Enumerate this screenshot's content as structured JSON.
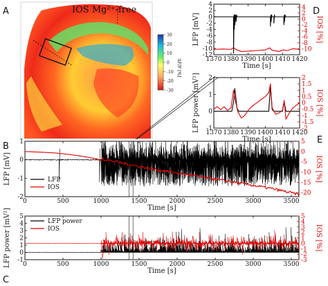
{
  "panel_letters": {
    "a": "A",
    "b": "B",
    "c": "C",
    "d": "D",
    "e": "E"
  },
  "image_panel": {
    "title": "IOS Mg²⁺-free",
    "colorbar": {
      "label": "ΔF/F [%]",
      "ticks": [
        "30",
        "20",
        "10",
        "0",
        "-10",
        "-20",
        "-30"
      ],
      "range": [
        -30,
        30
      ],
      "colormap": [
        "#d7191c",
        "#fdae61",
        "#ffff66",
        "#66ee66",
        "#22bbdd",
        "#2233aa"
      ]
    }
  },
  "colors": {
    "lfp": "#000000",
    "ios": "#e00000"
  },
  "chart_data": [
    {
      "id": "D",
      "type": "line",
      "x_label": "Time [s]",
      "y_label": "LFP [mV]",
      "y2_label": "IOS [%]",
      "xlim": [
        1370,
        1420
      ],
      "ylim": [
        -12,
        4
      ],
      "y2lim": [
        -12,
        5
      ],
      "x_ticks": [
        1370,
        1380,
        1390,
        1400,
        1410,
        1420
      ],
      "y_ticks": [
        -12,
        -10,
        -8,
        -6,
        -4,
        -2,
        0,
        2,
        4
      ],
      "y2_ticks": [
        -10,
        -8,
        -6,
        -4,
        -2,
        0,
        2,
        4
      ],
      "series": [
        {
          "axis": "left",
          "color": "#000000",
          "baseline": 0,
          "spikes": [
            [
              1381.5,
              -11.5
            ],
            [
              1381.9,
              -4
            ],
            [
              1382.3,
              -2.5
            ],
            [
              1383,
              -1.5
            ],
            [
              1403,
              -3
            ],
            [
              1403.4,
              -1.5
            ],
            [
              1405,
              -2
            ],
            [
              1410.8,
              -2.5
            ],
            [
              1411.2,
              -1.5
            ]
          ]
        },
        {
          "axis": "right",
          "color": "#e00000",
          "points": [
            [
              1370,
              -10.2
            ],
            [
              1375,
              -10.1
            ],
            [
              1380,
              -10.2
            ],
            [
              1381.5,
              -9.6
            ],
            [
              1383,
              -10.3
            ],
            [
              1386,
              -10.9
            ],
            [
              1390,
              -10.8
            ],
            [
              1395,
              -10.6
            ],
            [
              1400,
              -10.4
            ],
            [
              1402.5,
              -9.7
            ],
            [
              1404,
              -10.5
            ],
            [
              1408,
              -10.9
            ],
            [
              1410.5,
              -10.4
            ],
            [
              1413,
              -10.6
            ],
            [
              1416,
              -10.0
            ],
            [
              1420,
              -10.2
            ]
          ]
        }
      ]
    },
    {
      "id": "E",
      "type": "line",
      "x_label": "Time [s]",
      "y_label": "LFP power [mV²]",
      "y2_label": "IOS [%]",
      "xlim": [
        1370,
        1420
      ],
      "ylim": [
        -1,
        2
      ],
      "y2lim": [
        -2,
        2
      ],
      "x_ticks": [
        1370,
        1380,
        1390,
        1400,
        1410,
        1420
      ],
      "y_ticks": [
        -1,
        0,
        1,
        2
      ],
      "y2_ticks": [
        -2,
        -1.5,
        -1,
        -0.5,
        0,
        0.5,
        1,
        1.5,
        2
      ],
      "series": [
        {
          "axis": "left",
          "color": "#000000",
          "points": [
            [
              1370,
              0
            ],
            [
              1380.5,
              0
            ],
            [
              1381.5,
              0.55
            ],
            [
              1382.2,
              1.35
            ],
            [
              1383.5,
              0.2
            ],
            [
              1384.5,
              0
            ],
            [
              1402,
              0
            ],
            [
              1403,
              1.5
            ],
            [
              1404,
              0.1
            ],
            [
              1405,
              0
            ],
            [
              1410,
              0
            ],
            [
              1411,
              0.55
            ],
            [
              1412,
              0
            ],
            [
              1420,
              0
            ]
          ]
        },
        {
          "axis": "right",
          "color": "#e00000",
          "points": [
            [
              1370,
              -0.5
            ],
            [
              1372,
              -0.3
            ],
            [
              1374,
              -0.55
            ],
            [
              1376,
              -0.3
            ],
            [
              1378,
              -0.6
            ],
            [
              1380,
              -0.4
            ],
            [
              1381.5,
              1.0
            ],
            [
              1382.5,
              0.2
            ],
            [
              1384,
              -0.7
            ],
            [
              1386,
              -1.2
            ],
            [
              1388,
              -1.0
            ],
            [
              1390,
              -0.6
            ],
            [
              1392,
              -0.3
            ],
            [
              1394,
              -0.1
            ],
            [
              1396,
              0.1
            ],
            [
              1398,
              0.3
            ],
            [
              1400,
              0.5
            ],
            [
              1402,
              0.8
            ],
            [
              1403,
              1.5
            ],
            [
              1404,
              -0.4
            ],
            [
              1406,
              -0.9
            ],
            [
              1408,
              -0.8
            ],
            [
              1410,
              -0.6
            ],
            [
              1411,
              0.2
            ],
            [
              1412,
              -1.3
            ],
            [
              1414,
              -0.8
            ],
            [
              1416,
              -0.4
            ],
            [
              1418,
              -0.2
            ],
            [
              1420,
              0.0
            ]
          ]
        }
      ]
    },
    {
      "id": "B",
      "type": "line",
      "x_label": "Time [s]",
      "y_label": "LFP [mV]",
      "y2_label": "IOS [%]",
      "xlim": [
        0,
        3600
      ],
      "ylim": [
        -2,
        1
      ],
      "y2lim": [
        -22,
        5
      ],
      "x_ticks": [
        0,
        500,
        1000,
        1500,
        2000,
        2500,
        3000,
        3500
      ],
      "y_ticks": [
        -2,
        -1,
        0,
        1
      ],
      "y2_ticks": [
        -20,
        -15,
        -10,
        -5,
        0,
        5
      ],
      "legend": [
        "LFP",
        "IOS"
      ],
      "legend_position": "bottom-left",
      "series": [
        {
          "name": "LFP",
          "axis": "left",
          "color": "#000000",
          "baseline": 0,
          "activity_start": 1000,
          "amplitude": 0.9
        },
        {
          "name": "IOS",
          "axis": "right",
          "color": "#e00000",
          "points": [
            [
              0,
              0
            ],
            [
              200,
              -0.3
            ],
            [
              400,
              -0.7
            ],
            [
              600,
              -1.5
            ],
            [
              800,
              -2.6
            ],
            [
              950,
              -3.6
            ],
            [
              1000,
              -4.5
            ],
            [
              1020,
              -2.8
            ],
            [
              1050,
              -4.0
            ],
            [
              1200,
              -5.0
            ],
            [
              1400,
              -6.5
            ],
            [
              1600,
              -8.0
            ],
            [
              2000,
              -10.5
            ],
            [
              2500,
              -13.5
            ],
            [
              3000,
              -16.5
            ],
            [
              3300,
              -18.5
            ],
            [
              3600,
              -21
            ]
          ]
        }
      ]
    },
    {
      "id": "C",
      "type": "line",
      "x_label": "Time [s]",
      "y_label": "LFP power [mV²]",
      "y2_label": "IOS [%]",
      "xlim": [
        0,
        3600
      ],
      "ylim": [
        -1,
        5
      ],
      "y2lim": [
        -3,
        5
      ],
      "x_ticks": [
        0,
        500,
        1000,
        1500,
        2000,
        2500,
        3000,
        3500
      ],
      "y_ticks": [
        -1,
        0,
        1,
        2,
        3,
        4,
        5
      ],
      "y2_ticks": [
        -3,
        -2,
        -1,
        0,
        1,
        2,
        3,
        4,
        5
      ],
      "legend": [
        "LFP power",
        "IOS"
      ],
      "legend_position": "top-left",
      "series": [
        {
          "name": "LFP power",
          "axis": "left",
          "color": "#000000",
          "baseline": 0,
          "activity_start": 1000,
          "amplitude": 2.2
        },
        {
          "name": "IOS",
          "axis": "right",
          "color": "#e00000",
          "baseline": 0,
          "activity_start": 1000,
          "amplitude": 1.6,
          "dip": [
            1000,
            -2.8
          ]
        }
      ]
    }
  ]
}
